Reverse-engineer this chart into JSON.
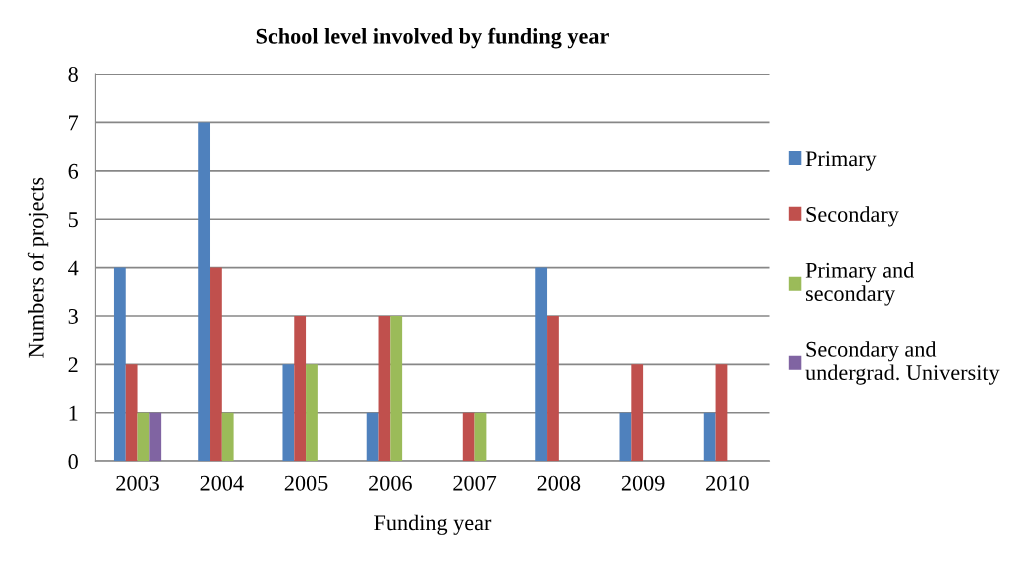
{
  "chart_data": {
    "type": "bar",
    "title": "School level involved by funding year",
    "xlabel": "Funding year",
    "ylabel": "Numbers of projects",
    "categories": [
      "2003",
      "2004",
      "2005",
      "2006",
      "2007",
      "2008",
      "2009",
      "2010"
    ],
    "series": [
      {
        "name": "Primary",
        "color": "#4f81bd",
        "values": [
          4,
          7,
          2,
          1,
          0,
          4,
          1,
          1
        ]
      },
      {
        "name": "Secondary",
        "color": "#c0504d",
        "values": [
          2,
          4,
          3,
          3,
          1,
          3,
          2,
          2
        ]
      },
      {
        "name": "Primary and\nsecondary",
        "color": "#9bbb59",
        "values": [
          1,
          1,
          2,
          3,
          1,
          0,
          0,
          0
        ]
      },
      {
        "name": "Secondary and\nundergrad. University",
        "color": "#8064a2",
        "values": [
          1,
          0,
          0,
          0,
          0,
          0,
          0,
          0
        ]
      }
    ],
    "ylim": [
      0,
      8
    ],
    "yticks": [
      0,
      1,
      2,
      3,
      4,
      5,
      6,
      7,
      8
    ],
    "grid": "y",
    "legend": "right"
  }
}
